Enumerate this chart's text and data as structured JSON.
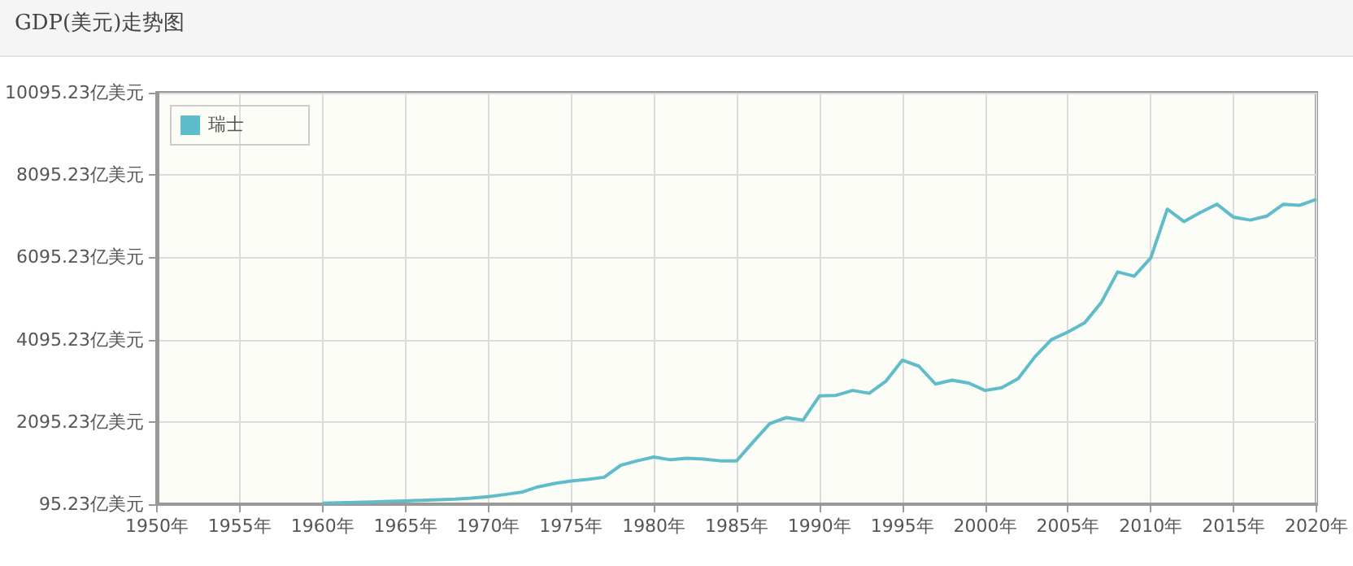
{
  "chart_data": {
    "type": "line",
    "title": "GDP(美元)走势图",
    "x": [
      1960,
      1961,
      1962,
      1963,
      1964,
      1965,
      1966,
      1967,
      1968,
      1969,
      1970,
      1971,
      1972,
      1973,
      1974,
      1975,
      1976,
      1977,
      1978,
      1979,
      1980,
      1981,
      1982,
      1983,
      1984,
      1985,
      1986,
      1987,
      1988,
      1989,
      1990,
      1991,
      1992,
      1993,
      1994,
      1995,
      1996,
      1997,
      1998,
      1999,
      2000,
      2001,
      2002,
      2003,
      2004,
      2005,
      2006,
      2007,
      2008,
      2009,
      2010,
      2011,
      2012,
      2013,
      2014,
      2015,
      2016,
      2017,
      2018,
      2019,
      2020
    ],
    "series": [
      {
        "name": "瑞士",
        "color": "#5fbcc9",
        "values": [
          120,
          130,
          140,
          150,
          165,
          175,
          190,
          205,
          220,
          245,
          280,
          330,
          385,
          516,
          600,
          660,
          700,
          750,
          1040,
          1150,
          1240,
          1175,
          1213,
          1190,
          1150,
          1150,
          1610,
          2055,
          2200,
          2135,
          2727,
          2740,
          2860,
          2790,
          3080,
          3595,
          3450,
          3015,
          3110,
          3040,
          2860,
          2925,
          3150,
          3675,
          4095,
          4280,
          4500,
          4990,
          5740,
          5635,
          6080,
          7265,
          6965,
          7185,
          7385,
          7070,
          7000,
          7095,
          7385,
          7360,
          7505
        ]
      }
    ],
    "xlim": [
      1950,
      2020
    ],
    "xticks": [
      {
        "value": 1950,
        "label": "1950年"
      },
      {
        "value": 1955,
        "label": "1955年"
      },
      {
        "value": 1960,
        "label": "1960年"
      },
      {
        "value": 1965,
        "label": "1965年"
      },
      {
        "value": 1970,
        "label": "1970年"
      },
      {
        "value": 1975,
        "label": "1975年"
      },
      {
        "value": 1980,
        "label": "1980年"
      },
      {
        "value": 1985,
        "label": "1985年"
      },
      {
        "value": 1990,
        "label": "1990年"
      },
      {
        "value": 1995,
        "label": "1995年"
      },
      {
        "value": 2000,
        "label": "2000年"
      },
      {
        "value": 2005,
        "label": "2005年"
      },
      {
        "value": 2010,
        "label": "2010年"
      },
      {
        "value": 2015,
        "label": "2015年"
      },
      {
        "value": 2020,
        "label": "2020年"
      }
    ],
    "ylim": [
      95.23,
      10095.23
    ],
    "yticks": [
      {
        "value": 95.23,
        "label": "95.23亿美元"
      },
      {
        "value": 2095.23,
        "label": "2095.23亿美元"
      },
      {
        "value": 4095.23,
        "label": "4095.23亿美元"
      },
      {
        "value": 6095.23,
        "label": "6095.23亿美元"
      },
      {
        "value": 8095.23,
        "label": "8095.23亿美元"
      },
      {
        "value": 10095.23,
        "label": "10095.23亿美元"
      }
    ],
    "grid": true,
    "legend": "top left",
    "marker": "none",
    "line_style": "solid"
  }
}
